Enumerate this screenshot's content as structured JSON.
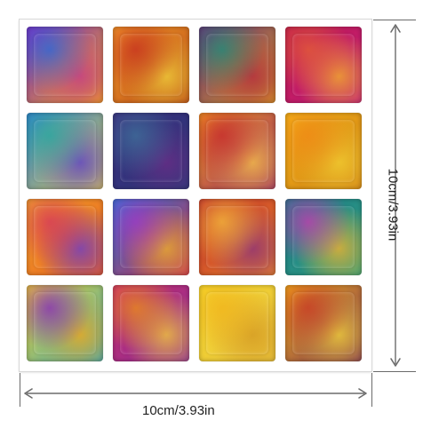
{
  "product": {
    "tiles": [
      {
        "row": 1,
        "col": 1,
        "colors": [
          "#7a2cc7",
          "#2b68d9",
          "#c23a8a",
          "#f1a31f"
        ]
      },
      {
        "row": 1,
        "col": 2,
        "colors": [
          "#f5a22a",
          "#c7321f",
          "#f1d13b",
          "#b84315"
        ]
      },
      {
        "row": 1,
        "col": 3,
        "colors": [
          "#6b2d78",
          "#1f8a7a",
          "#b3283f",
          "#d59a27"
        ]
      },
      {
        "row": 1,
        "col": 4,
        "colors": [
          "#c21c4e",
          "#e25b36",
          "#f3b029",
          "#c21c7f"
        ]
      },
      {
        "row": 2,
        "col": 1,
        "colors": [
          "#2f7fd0",
          "#29a89f",
          "#5c3ec8",
          "#d7c45b"
        ]
      },
      {
        "row": 2,
        "col": 2,
        "colors": [
          "#3b2b7e",
          "#3f6f9a",
          "#6a2c86",
          "#2c3a7a"
        ]
      },
      {
        "row": 2,
        "col": 3,
        "colors": [
          "#f29a22",
          "#c72c2b",
          "#f6c24a",
          "#9a2c65"
        ]
      },
      {
        "row": 2,
        "col": 4,
        "colors": [
          "#f4b418",
          "#f08a16",
          "#f2cf32",
          "#d07e14"
        ]
      },
      {
        "row": 3,
        "col": 1,
        "colors": [
          "#f3a82a",
          "#d63a5a",
          "#6b3ec9",
          "#e85a20"
        ]
      },
      {
        "row": 3,
        "col": 2,
        "colors": [
          "#2d73d4",
          "#9a3bc6",
          "#e8b12e",
          "#cc2f4f"
        ]
      },
      {
        "row": 3,
        "col": 3,
        "colors": [
          "#c22a2a",
          "#f2b43b",
          "#8b2f7a",
          "#e9872a"
        ]
      },
      {
        "row": 3,
        "col": 4,
        "colors": [
          "#1f7a8c",
          "#c23ab0",
          "#f0b12e",
          "#2ea27e"
        ]
      },
      {
        "row": 4,
        "col": 1,
        "colors": [
          "#f4d32c",
          "#8a2cb6",
          "#f1a91b",
          "#3ba6b8"
        ]
      },
      {
        "row": 4,
        "col": 2,
        "colors": [
          "#cc2e6a",
          "#e98a1b",
          "#f3c83a",
          "#8b2e9b"
        ]
      },
      {
        "row": 4,
        "col": 3,
        "colors": [
          "#f6d72c",
          "#f1b51c",
          "#d59a22",
          "#e8c33f"
        ]
      },
      {
        "row": 4,
        "col": 4,
        "colors": [
          "#f4b31a",
          "#c93c25",
          "#f2d33a",
          "#7b2f55"
        ]
      }
    ]
  },
  "dimensions": {
    "width_label": "10cm/3.93in",
    "height_label": "10cm/3.93in"
  }
}
